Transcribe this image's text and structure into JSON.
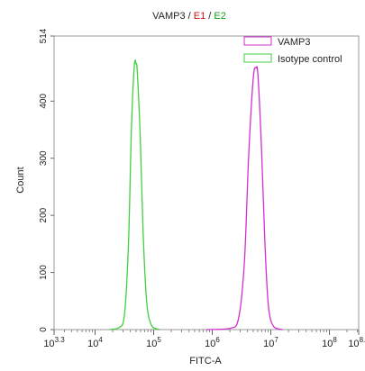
{
  "chart_data": {
    "type": "line",
    "title_parts": [
      {
        "text": "VAMP3",
        "color": "#222222"
      },
      {
        "text": " / ",
        "color": "#222222"
      },
      {
        "text": "E1",
        "color": "#d01010"
      },
      {
        "text": " / ",
        "color": "#222222"
      },
      {
        "text": "E2",
        "color": "#10a010"
      }
    ],
    "xlabel": "FITC-A",
    "ylabel": "Count",
    "xscale": "log",
    "xlim": [
      3.3,
      8.5
    ],
    "ylim": [
      0,
      514
    ],
    "x_ticks": [
      {
        "value": 3.3,
        "base": "10",
        "exp": "3.3"
      },
      {
        "value": 4,
        "base": "10",
        "exp": "4"
      },
      {
        "value": 5,
        "base": "10",
        "exp": "5"
      },
      {
        "value": 6,
        "base": "10",
        "exp": "6"
      },
      {
        "value": 7,
        "base": "10",
        "exp": "7"
      },
      {
        "value": 8,
        "base": "10",
        "exp": "8"
      },
      {
        "value": 8.5,
        "base": "10",
        "exp": "8.5"
      }
    ],
    "y_ticks": [
      0,
      100,
      200,
      300,
      400,
      514
    ],
    "legend_position": "top-right",
    "series": [
      {
        "name": "VAMP3",
        "color": "#d12fd1",
        "points": [
          [
            5.9,
            0
          ],
          [
            6.3,
            2
          ],
          [
            6.45,
            20
          ],
          [
            6.55,
            120
          ],
          [
            6.62,
            300
          ],
          [
            6.7,
            440
          ],
          [
            6.75,
            458
          ],
          [
            6.78,
            445
          ],
          [
            6.84,
            320
          ],
          [
            6.9,
            150
          ],
          [
            6.96,
            40
          ],
          [
            7.05,
            5
          ],
          [
            7.2,
            0
          ]
        ]
      },
      {
        "name": "Isotype control",
        "color": "#40d040",
        "points": [
          [
            4.25,
            0
          ],
          [
            4.4,
            3
          ],
          [
            4.5,
            25
          ],
          [
            4.57,
            150
          ],
          [
            4.62,
            350
          ],
          [
            4.67,
            462
          ],
          [
            4.7,
            465
          ],
          [
            4.72,
            452
          ],
          [
            4.77,
            340
          ],
          [
            4.82,
            170
          ],
          [
            4.88,
            50
          ],
          [
            4.96,
            8
          ],
          [
            5.1,
            0
          ]
        ]
      }
    ]
  }
}
